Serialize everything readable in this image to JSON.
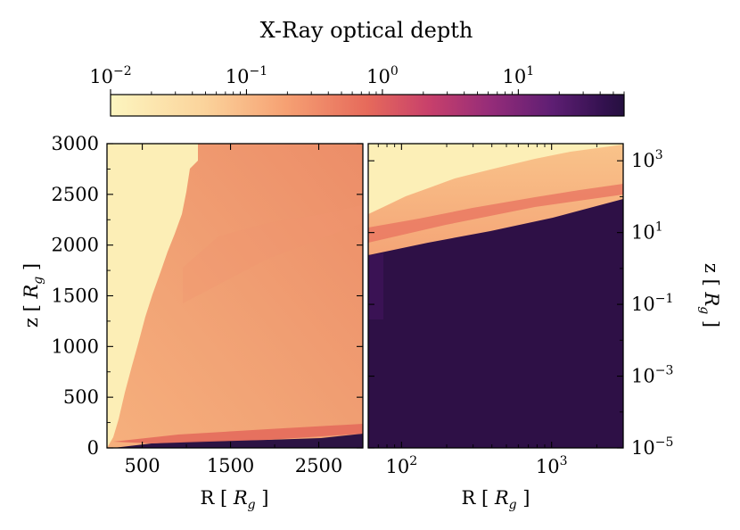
{
  "chart_data": [
    {
      "type": "heatmap",
      "role": "colorbar",
      "title": "X-Ray optical depth",
      "scale": "log",
      "range": [
        0.01,
        60
      ],
      "tick_labels": [
        {
          "base": "10",
          "exp": "−2",
          "value": 0.01
        },
        {
          "base": "10",
          "exp": "−1",
          "value": 0.1
        },
        {
          "base": "10",
          "exp": "0",
          "value": 1
        },
        {
          "base": "10",
          "exp": "1",
          "value": 10
        }
      ],
      "colormap": [
        "#fcfdbf",
        "#feca8d",
        "#fd9668",
        "#f1605d",
        "#cd4071",
        "#9e2f7f",
        "#721f81",
        "#440f76",
        "#180f3d",
        "#000004"
      ]
    },
    {
      "type": "heatmap",
      "role": "left-panel",
      "xlabel": {
        "prefix": "R [ ",
        "var": "R",
        "sub": "g",
        "suffix": " ]"
      },
      "ylabel": {
        "prefix": "z [ ",
        "var": "R",
        "sub": "g",
        "suffix": " ]"
      },
      "xlim": [
        100,
        3000
      ],
      "ylim": [
        0,
        3000
      ],
      "xticks": [
        {
          "value": 500,
          "label": "500"
        },
        {
          "value": 1500,
          "label": "1500"
        },
        {
          "value": 2500,
          "label": "2500"
        }
      ],
      "yticks": [
        {
          "value": 0,
          "label": "0"
        },
        {
          "value": 500,
          "label": "500"
        },
        {
          "value": 1000,
          "label": "1000"
        },
        {
          "value": 1500,
          "label": "1500"
        },
        {
          "value": 2000,
          "label": "2000"
        },
        {
          "value": 2500,
          "label": "2500"
        },
        {
          "value": 3000,
          "label": "3000"
        }
      ],
      "regions": [
        {
          "name": "optically-thin-wedge",
          "tau": 0.012,
          "boundary": [
            [
              100,
              0
            ],
            [
              1000,
              2750
            ],
            [
              1050,
              3000
            ],
            [
              100,
              3000
            ]
          ]
        },
        {
          "name": "wind-region",
          "tau": 0.3
        },
        {
          "name": "disc-midplane",
          "tau": 30,
          "boundary": [
            [
              300,
              0
            ],
            [
              3000,
              100
            ],
            [
              3000,
              0
            ]
          ]
        }
      ]
    },
    {
      "type": "heatmap",
      "role": "right-panel",
      "xlabel": {
        "prefix": "R [ ",
        "var": "R",
        "sub": "g",
        "suffix": " ]"
      },
      "ylabel": {
        "prefix": "z [ ",
        "var": "R",
        "sub": "g",
        "suffix": " ]"
      },
      "xscale": "log",
      "yscale": "log",
      "xlim": [
        60,
        3000
      ],
      "ylim": [
        1e-05,
        3000
      ],
      "xticks": [
        {
          "value": 100,
          "base": "10",
          "exp": "2"
        },
        {
          "value": 1000,
          "base": "10",
          "exp": "3"
        }
      ],
      "yticks": [
        {
          "value": 1e-05,
          "base": "10",
          "exp": "−5"
        },
        {
          "value": 0.001,
          "base": "10",
          "exp": "−3"
        },
        {
          "value": 0.1,
          "base": "10",
          "exp": "−1"
        },
        {
          "value": 10,
          "base": "10",
          "exp": "1"
        },
        {
          "value": 1000,
          "base": "10",
          "exp": "3"
        }
      ],
      "regions": [
        {
          "name": "optically-thin-top",
          "tau": 0.012
        },
        {
          "name": "wind-layer",
          "tau": 0.4
        },
        {
          "name": "opaque-disc",
          "tau": 40,
          "boundary": [
            [
              60,
              5
            ],
            [
              3000,
              80
            ]
          ]
        }
      ]
    }
  ]
}
